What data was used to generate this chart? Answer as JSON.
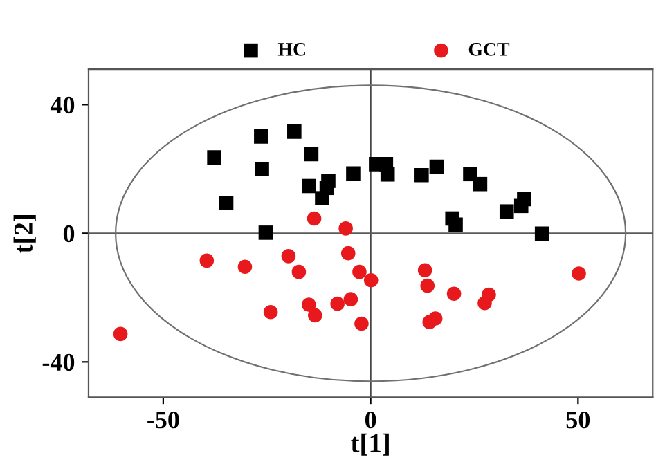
{
  "chart_data": {
    "type": "scatter",
    "xlabel": "t[1]",
    "ylabel": "t[2]",
    "xlim": [
      -68,
      68
    ],
    "ylim": [
      -51,
      51
    ],
    "xticks": [
      -50,
      0,
      50
    ],
    "yticks": [
      -40,
      0,
      40
    ],
    "grid": false,
    "legend": "top",
    "ref_lines": [
      {
        "axis": "x",
        "value": 0,
        "color": "#444444"
      },
      {
        "axis": "y",
        "value": 0,
        "color": "#5a5a5a"
      }
    ],
    "series": [
      {
        "name": "HC",
        "color": "#000000",
        "marker": "square",
        "x": [
          -37.7,
          -34.8,
          -26.4,
          -26.2,
          -25.3,
          -18.4,
          -14.3,
          -14.9,
          -10.2,
          -10.6,
          -11.7,
          -4.2,
          1.3,
          3.7,
          4.1,
          12.3,
          15.9,
          24.0,
          26.4,
          19.7,
          20.5,
          32.8,
          36.3,
          37.0,
          41.3
        ],
        "values": [
          23.6,
          9.4,
          30.1,
          20.0,
          0.2,
          31.6,
          24.6,
          14.7,
          16.3,
          14.1,
          10.9,
          18.6,
          21.5,
          21.5,
          18.3,
          18.1,
          20.7,
          18.4,
          15.3,
          4.6,
          2.7,
          6.8,
          8.5,
          10.6,
          -0.1
        ]
      },
      {
        "name": "GCT",
        "color": "#e8191c",
        "marker": "circle",
        "x": [
          -13.6,
          -6.0,
          -5.4,
          -39.5,
          -30.3,
          -19.8,
          -17.3,
          -2.7,
          0.1,
          13.1,
          13.7,
          20.1,
          28.5,
          27.5,
          50.2,
          -14.9,
          -13.4,
          -8.0,
          -4.8,
          -24.1,
          -2.2,
          14.2,
          15.6,
          -60.3
        ],
        "values": [
          4.6,
          1.5,
          -6.2,
          -8.5,
          -10.4,
          -7.1,
          -12.0,
          -12.0,
          -14.6,
          -11.5,
          -16.3,
          -18.8,
          -19.1,
          -21.7,
          -12.5,
          -22.2,
          -25.5,
          -21.9,
          -20.5,
          -24.5,
          -28.1,
          -27.6,
          -26.5,
          -31.3
        ]
      }
    ]
  }
}
